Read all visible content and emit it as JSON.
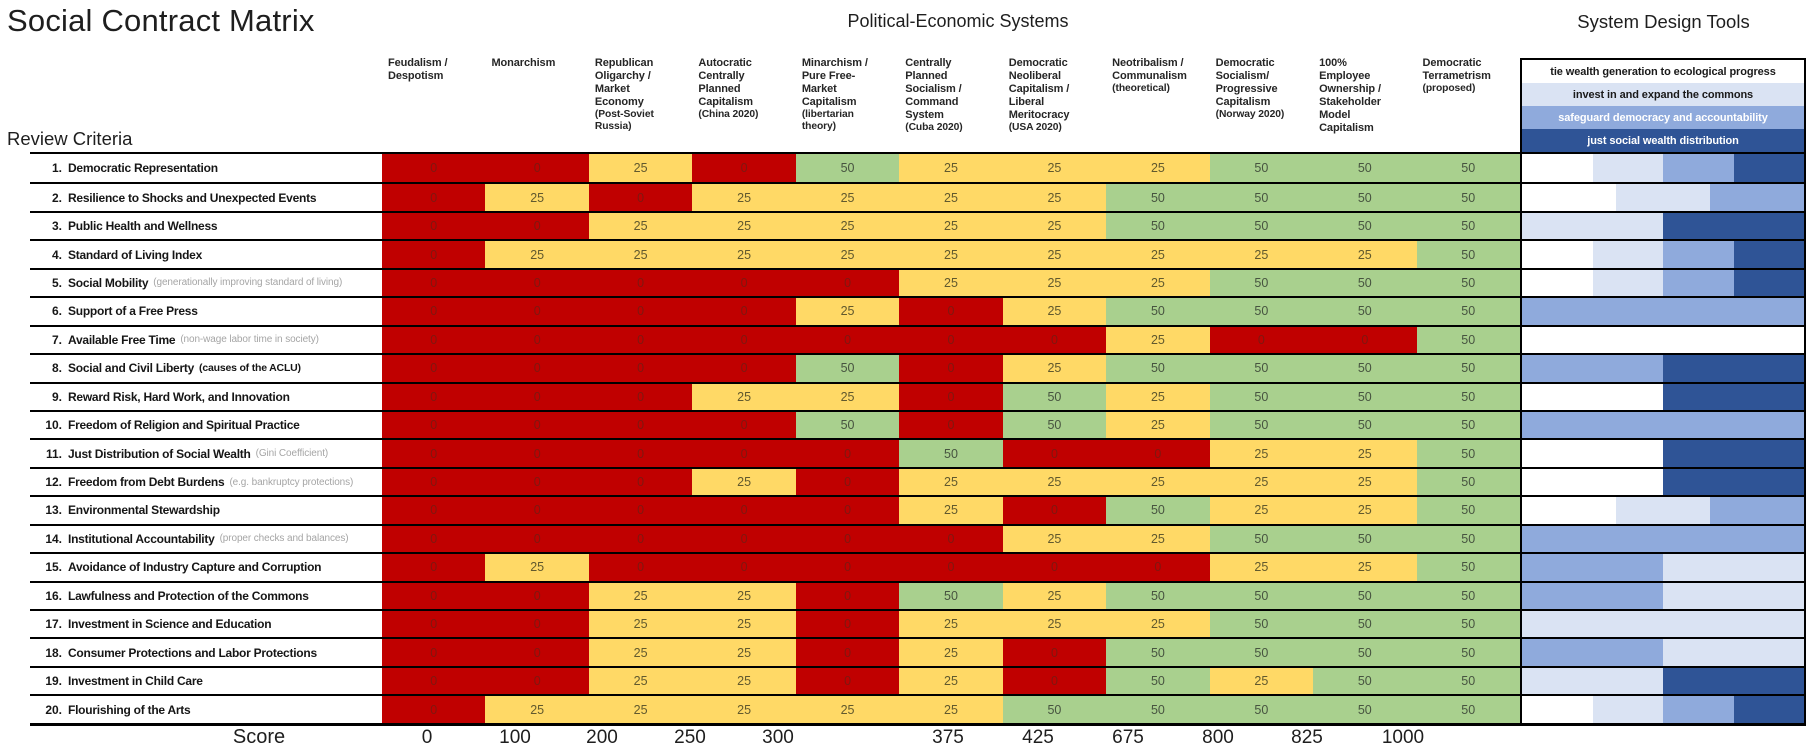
{
  "title": "Social Contract Matrix",
  "section_headers": {
    "systems": "Political-Economic Systems",
    "tools": "System Design Tools"
  },
  "review_criteria_label": "Review Criteria",
  "score_label": "Score",
  "chart_data": {
    "type": "heatmap",
    "title": "Social Contract Matrix",
    "col_group_label": "Political-Economic Systems",
    "row_group_label": "Review Criteria",
    "score_label": "Score",
    "value_scale": [
      0,
      25,
      50
    ],
    "value_colors": {
      "0": "#C00000",
      "25": "#FFD966",
      "50": "#A9D08E"
    },
    "systems": [
      {
        "name": "Feudalism / Despotism",
        "note": "",
        "score": "0"
      },
      {
        "name": "Monarchism",
        "note": "",
        "score": "100"
      },
      {
        "name": "Republican Oligarchy / Market Economy",
        "note": "(Post-Soviet Russia)",
        "score": "200"
      },
      {
        "name": "Autocratic Centrally Planned Capitalism",
        "note": "(China 2020)",
        "score": "250"
      },
      {
        "name": "Minarchism / Pure Free-Market Capitalism",
        "note": "(libertarian theory)",
        "score": "300"
      },
      {
        "name": "Centrally Planned Socialism / Command System",
        "note": "(Cuba 2020)",
        "score": "375"
      },
      {
        "name": "Democratic Neoliberal Capitalism / Liberal Meritocracy",
        "note": "(USA 2020)",
        "score": "425"
      },
      {
        "name": "Neotribalism / Communalism",
        "note": "(theoretical)",
        "score": "675"
      },
      {
        "name": "Democratic Socialism/ Progressive Capitalism",
        "note": "(Norway 2020)",
        "score": "800"
      },
      {
        "name": "100%\nEmployee Ownership / Stakeholder Model Capitalism",
        "note": "",
        "score": "825"
      },
      {
        "name": "Democratic Terrametrism",
        "note": "(proposed)",
        "score": "1000"
      }
    ],
    "design_tools_label": "System Design Tools",
    "design_tools": [
      {
        "label": "tie wealth generation to ecological progress",
        "color_key": "white"
      },
      {
        "label": "invest in and expand the commons",
        "color_key": "vlight"
      },
      {
        "label": "safeguard democracy and accountability",
        "color_key": "medium"
      },
      {
        "label": "just social wealth distribution",
        "color_key": "dark"
      }
    ],
    "tool_colors": {
      "white": "#FFFFFF",
      "vlight": "#DAE3F3",
      "medium": "#8FAADC",
      "dark": "#2F5496"
    },
    "criteria": [
      {
        "num": "1.",
        "label": "Democratic Representation",
        "note": "",
        "note_strong": false,
        "values": [
          0,
          0,
          25,
          0,
          50,
          25,
          25,
          25,
          50,
          50,
          50
        ],
        "tools": [
          "white",
          "vlight",
          "medium",
          "dark"
        ]
      },
      {
        "num": "2.",
        "label": "Resilience to Shocks and Unexpected Events",
        "note": "",
        "note_strong": false,
        "values": [
          0,
          25,
          0,
          25,
          25,
          25,
          25,
          50,
          50,
          50,
          50
        ],
        "tools": [
          "white",
          "vlight",
          "medium"
        ]
      },
      {
        "num": "3.",
        "label": "Public Health and Wellness",
        "note": "",
        "note_strong": false,
        "values": [
          0,
          0,
          25,
          25,
          25,
          25,
          25,
          50,
          50,
          50,
          50
        ],
        "tools": [
          "vlight",
          "dark"
        ]
      },
      {
        "num": "4.",
        "label": "Standard of Living Index",
        "note": "",
        "note_strong": false,
        "values": [
          0,
          25,
          25,
          25,
          25,
          25,
          25,
          25,
          25,
          25,
          50
        ],
        "tools": [
          "white",
          "vlight",
          "medium",
          "dark"
        ]
      },
      {
        "num": "5.",
        "label": "Social Mobility",
        "note": "(generationally improving standard of living)",
        "note_strong": false,
        "values": [
          0,
          0,
          0,
          0,
          0,
          25,
          25,
          25,
          50,
          50,
          50
        ],
        "tools": [
          "white",
          "vlight",
          "medium",
          "dark"
        ]
      },
      {
        "num": "6.",
        "label": "Support of a Free Press",
        "note": "",
        "note_strong": false,
        "values": [
          0,
          0,
          0,
          0,
          25,
          0,
          25,
          50,
          50,
          50,
          50
        ],
        "tools": [
          "medium"
        ]
      },
      {
        "num": "7.",
        "label": "Available Free Time",
        "note": "(non-wage labor time in society)",
        "note_strong": false,
        "values": [
          0,
          0,
          0,
          0,
          0,
          0,
          0,
          25,
          0,
          0,
          50
        ],
        "tools": [
          "white"
        ]
      },
      {
        "num": "8.",
        "label": "Social and Civil Liberty",
        "note": "(causes of the ACLU)",
        "note_strong": true,
        "values": [
          0,
          0,
          0,
          0,
          50,
          0,
          25,
          50,
          50,
          50,
          50
        ],
        "tools": [
          "medium",
          "dark"
        ]
      },
      {
        "num": "9.",
        "label": "Reward Risk, Hard Work, and Innovation",
        "note": "",
        "note_strong": false,
        "values": [
          0,
          0,
          0,
          25,
          25,
          0,
          50,
          25,
          50,
          50,
          50
        ],
        "tools": [
          "white",
          "dark"
        ]
      },
      {
        "num": "10.",
        "label": "Freedom of Religion and Spiritual Practice",
        "note": "",
        "note_strong": false,
        "values": [
          0,
          0,
          0,
          0,
          50,
          0,
          50,
          25,
          50,
          50,
          50
        ],
        "tools": [
          "medium"
        ]
      },
      {
        "num": "11.",
        "label": "Just Distribution of Social Wealth",
        "note": "(Gini Coefficient)",
        "note_strong": false,
        "values": [
          0,
          0,
          0,
          0,
          0,
          50,
          0,
          0,
          25,
          25,
          50
        ],
        "tools": [
          "white",
          "dark"
        ]
      },
      {
        "num": "12.",
        "label": "Freedom from Debt Burdens",
        "note": "(e.g. bankruptcy protections)",
        "note_strong": false,
        "values": [
          0,
          0,
          0,
          25,
          0,
          25,
          25,
          25,
          25,
          25,
          50
        ],
        "tools": [
          "white",
          "dark"
        ]
      },
      {
        "num": "13.",
        "label": "Environmental Stewardship",
        "note": "",
        "note_strong": false,
        "values": [
          0,
          0,
          0,
          0,
          0,
          25,
          0,
          50,
          25,
          25,
          50
        ],
        "tools": [
          "white",
          "vlight",
          "medium"
        ]
      },
      {
        "num": "14.",
        "label": "Institutional Accountability",
        "note": "(proper checks and balances)",
        "note_strong": false,
        "values": [
          0,
          0,
          0,
          0,
          0,
          0,
          25,
          25,
          50,
          50,
          50
        ],
        "tools": [
          "medium"
        ]
      },
      {
        "num": "15.",
        "label": "Avoidance of Industry Capture and Corruption",
        "note": "",
        "note_strong": false,
        "values": [
          0,
          25,
          0,
          0,
          0,
          0,
          0,
          0,
          25,
          25,
          50
        ],
        "tools": [
          "medium",
          "vlight"
        ]
      },
      {
        "num": "16.",
        "label": "Lawfulness and Protection of the Commons",
        "note": "",
        "note_strong": false,
        "values": [
          0,
          0,
          25,
          25,
          0,
          50,
          25,
          50,
          50,
          50,
          50
        ],
        "tools": [
          "medium",
          "vlight"
        ]
      },
      {
        "num": "17.",
        "label": "Investment in Science and Education",
        "note": "",
        "note_strong": false,
        "values": [
          0,
          0,
          25,
          25,
          0,
          25,
          25,
          25,
          50,
          50,
          50
        ],
        "tools": [
          "vlight"
        ]
      },
      {
        "num": "18.",
        "label": "Consumer Protections and Labor Protections",
        "note": "",
        "note_strong": false,
        "values": [
          0,
          0,
          25,
          25,
          0,
          25,
          0,
          50,
          50,
          50,
          50
        ],
        "tools": [
          "medium",
          "vlight"
        ]
      },
      {
        "num": "19.",
        "label": "Investment in Child Care",
        "note": "",
        "note_strong": false,
        "values": [
          0,
          0,
          25,
          25,
          0,
          25,
          0,
          50,
          25,
          50,
          50
        ],
        "tools": [
          "vlight",
          "dark"
        ]
      },
      {
        "num": "20.",
        "label": "Flourishing of the Arts",
        "note": "",
        "note_strong": false,
        "values": [
          0,
          25,
          25,
          25,
          25,
          25,
          50,
          50,
          50,
          50,
          50
        ],
        "tools": [
          "white",
          "vlight",
          "medium",
          "dark"
        ]
      }
    ]
  }
}
